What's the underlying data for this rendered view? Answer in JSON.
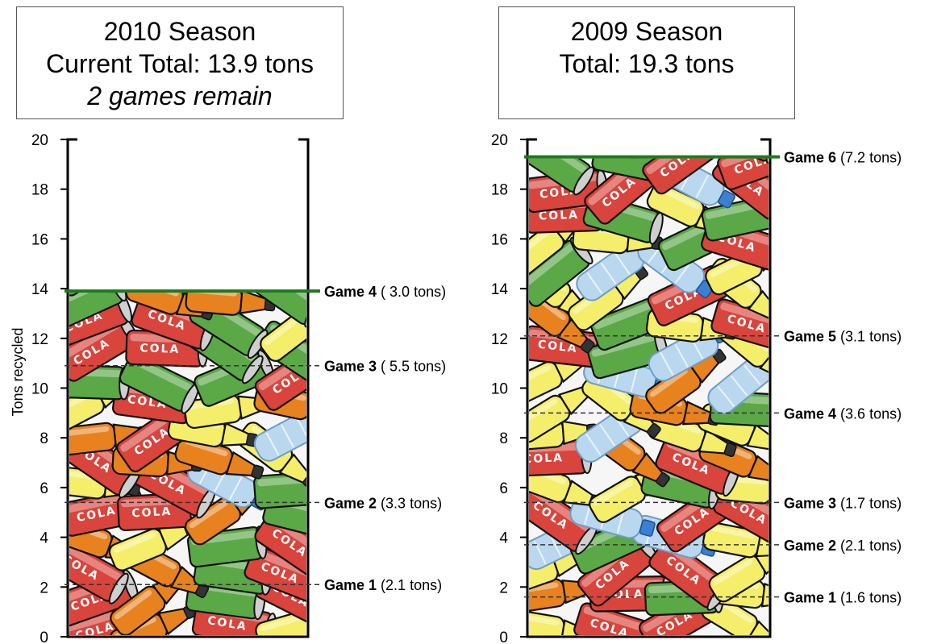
{
  "chart_data": [
    {
      "type": "bar",
      "title_lines": [
        "2010 Season",
        "Current Total: 13.9 tons",
        "2 games remain"
      ],
      "ylabel": "Tons recycled",
      "ylim": [
        0,
        20
      ],
      "yticks": [
        "0",
        "2",
        "4",
        "6",
        "8",
        "10",
        "12",
        "14",
        "16",
        "18",
        "20"
      ],
      "total": 13.9,
      "games": [
        {
          "name": "Game 1",
          "detail": " (2.1 tons)",
          "tons": 2.1,
          "cumulative": 2.1
        },
        {
          "name": "Game 2",
          "detail": " (3.3 tons)",
          "tons": 3.3,
          "cumulative": 5.4
        },
        {
          "name": "Game 3",
          "detail": " ( 5.5 tons)",
          "tons": 5.5,
          "cumulative": 10.9
        },
        {
          "name": "Game 4",
          "detail": " ( 3.0 tons)",
          "tons": 3.0,
          "cumulative": 13.9
        }
      ]
    },
    {
      "type": "bar",
      "title_lines": [
        "2009 Season",
        "Total: 19.3 tons"
      ],
      "ylim": [
        0,
        20
      ],
      "yticks": [
        "0",
        "2",
        "4",
        "6",
        "8",
        "10",
        "12",
        "14",
        "16",
        "18",
        "20"
      ],
      "total": 19.3,
      "games": [
        {
          "name": "Game 1",
          "detail": " (1.6 tons)",
          "tons": 1.6,
          "cumulative": 1.6
        },
        {
          "name": "Game 2",
          "detail": " (2.1 tons)",
          "tons": 2.1,
          "cumulative": 3.7
        },
        {
          "name": "Game 3",
          "detail": " (1.7 tons)",
          "tons": 1.7,
          "cumulative": 5.4
        },
        {
          "name": "Game 4",
          "detail": " (3.6 tons)",
          "tons": 3.6,
          "cumulative": 9.0
        },
        {
          "name": "Game 5",
          "detail": " (3.1 tons)",
          "tons": 3.1,
          "cumulative": 12.1
        },
        {
          "name": "Game 6",
          "detail": " (7.2 tons)",
          "tons": 7.2,
          "cumulative": 19.3
        }
      ]
    }
  ],
  "colors": {
    "total_line": "#1e7a1e",
    "game_line": "#333333",
    "can_red": "#d9443c",
    "can_green": "#5aa846",
    "bottle_orange": "#e8821e",
    "bottle_yellow": "#f4ee6a",
    "bottle_blue": "#b9d8ef",
    "outline": "#111111"
  }
}
